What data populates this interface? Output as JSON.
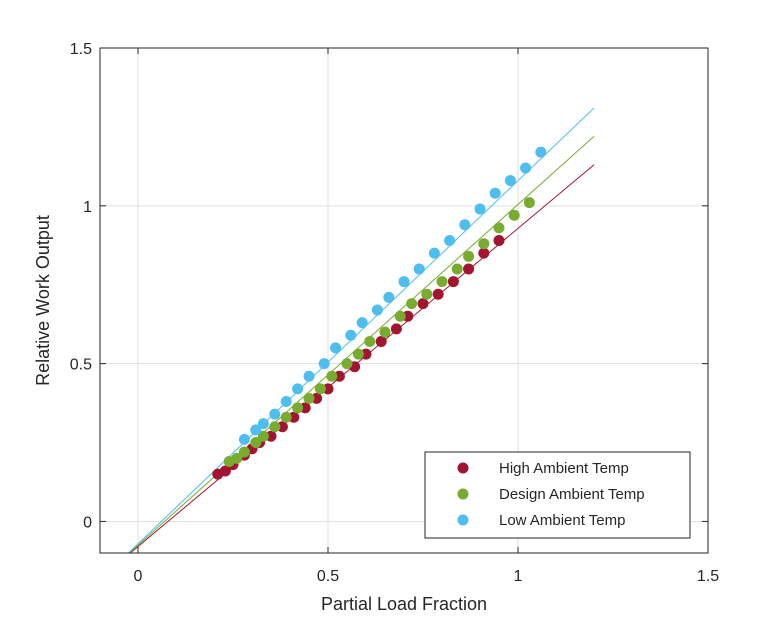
{
  "chart_data": {
    "type": "scatter",
    "xlabel": "Partial Load Fraction",
    "ylabel": "Relative Work Output",
    "xlim": [
      -0.1,
      1.5
    ],
    "ylim": [
      -0.1,
      1.5
    ],
    "xticks": [
      0,
      0.5,
      1,
      1.5
    ],
    "yticks": [
      0,
      0.5,
      1,
      1.5
    ],
    "xtick_labels": [
      "0",
      "0.5",
      "1",
      "1.5"
    ],
    "ytick_labels": [
      "0",
      "0.5",
      "1",
      "1.5"
    ],
    "grid": true,
    "legend_position": "bottom-right",
    "series": [
      {
        "name": "High Ambient Temp",
        "color": "#a2142f",
        "x": [
          0.21,
          0.23,
          0.25,
          0.28,
          0.3,
          0.32,
          0.35,
          0.38,
          0.41,
          0.44,
          0.47,
          0.5,
          0.53,
          0.57,
          0.6,
          0.64,
          0.68,
          0.71,
          0.75,
          0.79,
          0.83,
          0.87,
          0.91,
          0.95
        ],
        "y": [
          0.15,
          0.16,
          0.18,
          0.21,
          0.23,
          0.25,
          0.27,
          0.3,
          0.33,
          0.36,
          0.39,
          0.42,
          0.46,
          0.49,
          0.53,
          0.57,
          0.61,
          0.65,
          0.69,
          0.72,
          0.76,
          0.8,
          0.85,
          0.89
        ],
        "fit_line": {
          "x": [
            -0.06,
            1.2
          ],
          "y": [
            -0.14,
            1.13
          ]
        }
      },
      {
        "name": "Design Ambient Temp",
        "color": "#77ac30",
        "x": [
          0.24,
          0.26,
          0.28,
          0.31,
          0.33,
          0.36,
          0.39,
          0.42,
          0.45,
          0.48,
          0.51,
          0.55,
          0.58,
          0.61,
          0.65,
          0.69,
          0.72,
          0.76,
          0.8,
          0.84,
          0.87,
          0.91,
          0.95,
          0.99,
          1.03
        ],
        "y": [
          0.19,
          0.2,
          0.22,
          0.25,
          0.27,
          0.3,
          0.33,
          0.36,
          0.39,
          0.42,
          0.46,
          0.5,
          0.53,
          0.57,
          0.6,
          0.65,
          0.69,
          0.72,
          0.76,
          0.8,
          0.84,
          0.88,
          0.93,
          0.97,
          1.01
        ],
        "fit_line": {
          "x": [
            -0.06,
            1.2
          ],
          "y": [
            -0.14,
            1.22
          ]
        }
      },
      {
        "name": "Low Ambient Temp",
        "color": "#4dbeee",
        "x": [
          0.28,
          0.31,
          0.33,
          0.36,
          0.39,
          0.42,
          0.45,
          0.49,
          0.52,
          0.56,
          0.59,
          0.63,
          0.66,
          0.7,
          0.74,
          0.78,
          0.82,
          0.86,
          0.9,
          0.94,
          0.98,
          1.02,
          1.06
        ],
        "y": [
          0.26,
          0.29,
          0.31,
          0.34,
          0.38,
          0.42,
          0.46,
          0.5,
          0.55,
          0.59,
          0.63,
          0.67,
          0.71,
          0.76,
          0.8,
          0.85,
          0.89,
          0.94,
          0.99,
          1.04,
          1.08,
          1.12,
          1.17
        ],
        "fit_line": {
          "x": [
            -0.06,
            1.2
          ],
          "y": [
            -0.14,
            1.31
          ]
        }
      }
    ]
  }
}
